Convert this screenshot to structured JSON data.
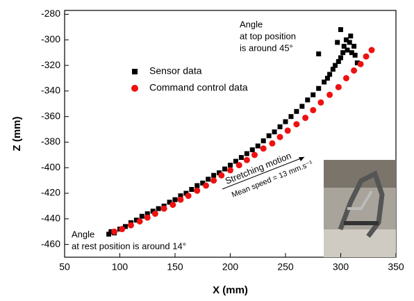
{
  "chart_data": {
    "type": "scatter",
    "x_label": "X (mm)",
    "y_label": "Z (mm)",
    "xlim": [
      50,
      350
    ],
    "ylim": [
      -470,
      -277
    ],
    "xticks": [
      50,
      100,
      150,
      200,
      250,
      300,
      350
    ],
    "yticks": [
      -280,
      -300,
      -320,
      -340,
      -360,
      -380,
      -400,
      -420,
      -440,
      -460
    ],
    "annotation_top": [
      "Angle",
      "at top position",
      "is around 45°"
    ],
    "annotation_rest": [
      "Angle",
      "at rest position is around 14°"
    ],
    "motion_label": "Stretching motion",
    "speed_label": "Mean speed = 13 mm.s⁻¹",
    "series": [
      {
        "name": "Sensor data",
        "color": "#000000",
        "marker": "square",
        "x": [
          90,
          92,
          95,
          100,
          105,
          110,
          115,
          120,
          125,
          130,
          135,
          140,
          145,
          150,
          155,
          160,
          165,
          170,
          175,
          180,
          185,
          190,
          195,
          200,
          205,
          210,
          215,
          220,
          225,
          230,
          235,
          240,
          245,
          250,
          255,
          260,
          265,
          270,
          275,
          280,
          285,
          288,
          290,
          293,
          295,
          298,
          300,
          302,
          303,
          305,
          306,
          308,
          310,
          312,
          313,
          315,
          300,
          280,
          297,
          309
        ],
        "values": [
          -452,
          -450,
          -451,
          -448,
          -446,
          -443,
          -441,
          -438,
          -436,
          -434,
          -432,
          -430,
          -427,
          -425,
          -422,
          -420,
          -417,
          -414,
          -412,
          -409,
          -406,
          -404,
          -401,
          -398,
          -395,
          -392,
          -389,
          -386,
          -383,
          -379,
          -375,
          -372,
          -368,
          -364,
          -360,
          -356,
          -352,
          -347,
          -343,
          -338,
          -333,
          -330,
          -327,
          -323,
          -320,
          -317,
          -314,
          -310,
          -305,
          -300,
          -308,
          -302,
          -310,
          -305,
          -312,
          -318,
          -292,
          -311,
          -302,
          -297
        ]
      },
      {
        "name": "Command control data",
        "color": "#ee1111",
        "marker": "circle",
        "x": [
          95,
          102,
          110,
          118,
          125,
          132,
          140,
          148,
          155,
          162,
          170,
          178,
          185,
          192,
          200,
          208,
          215,
          222,
          230,
          238,
          245,
          252,
          260,
          268,
          275,
          282,
          290,
          298,
          305,
          312,
          318,
          323,
          328
        ],
        "values": [
          -450,
          -448,
          -445,
          -442,
          -439,
          -436,
          -432,
          -429,
          -425,
          -422,
          -418,
          -414,
          -410,
          -406,
          -402,
          -398,
          -394,
          -390,
          -385,
          -381,
          -376,
          -371,
          -366,
          -361,
          -355,
          -349,
          -343,
          -337,
          -330,
          -324,
          -319,
          -313,
          -308
        ]
      }
    ]
  }
}
